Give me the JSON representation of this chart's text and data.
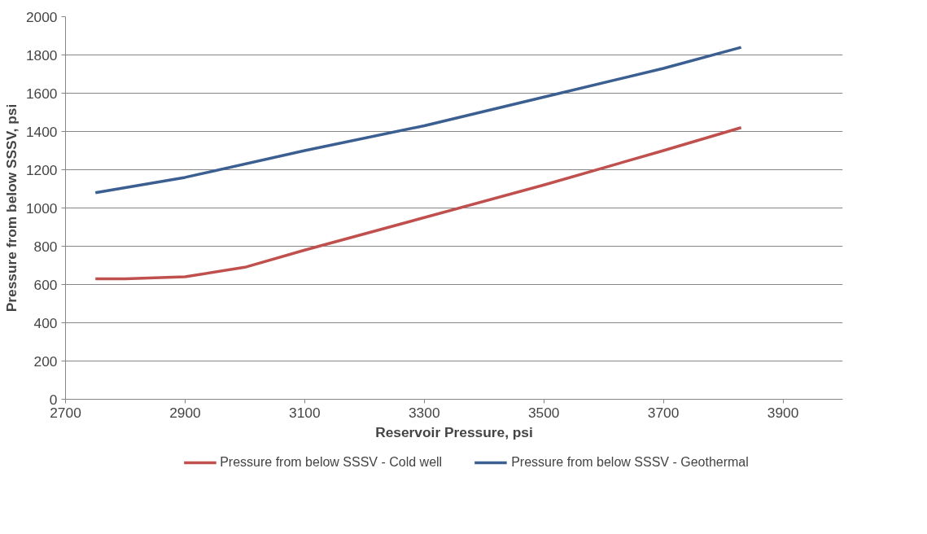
{
  "chart_data": {
    "type": "line",
    "xlabel": "Reservoir Pressure, psi",
    "ylabel": "Pressure from below SSSV, psi",
    "xlim": [
      2700,
      4000
    ],
    "xticks": [
      2700,
      2900,
      3100,
      3300,
      3500,
      3700,
      3900
    ],
    "ylim": [
      0,
      2000
    ],
    "yticks": [
      0,
      200,
      400,
      600,
      800,
      1000,
      1200,
      1400,
      1600,
      1800,
      2000
    ],
    "grid": "y",
    "legend": "bottom",
    "line_style": "solid",
    "series": [
      {
        "name": "Pressure from below SSSV - Cold well",
        "color": "#c0504d",
        "x": [
          2750,
          2800,
          2900,
          3000,
          3100,
          3300,
          3500,
          3700,
          3830
        ],
        "values": [
          630,
          630,
          640,
          690,
          780,
          950,
          1120,
          1300,
          1420
        ]
      },
      {
        "name": "Pressure from below SSSV - Geothermal",
        "color": "#3c5f91",
        "x": [
          2750,
          2900,
          3100,
          3300,
          3500,
          3700,
          3830
        ],
        "values": [
          1080,
          1160,
          1300,
          1430,
          1580,
          1730,
          1840
        ]
      }
    ]
  }
}
